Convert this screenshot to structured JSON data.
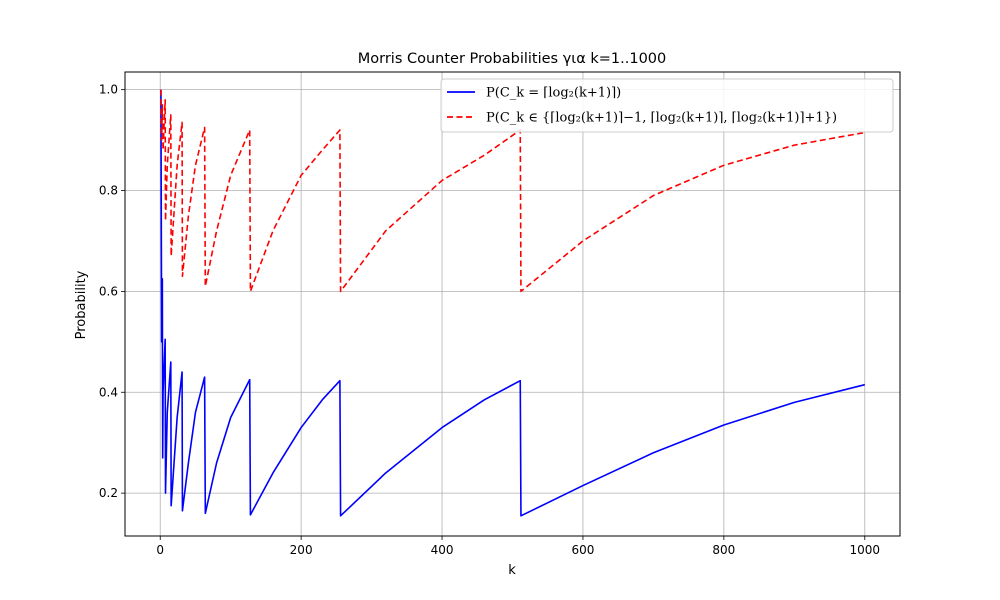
{
  "chart_data": {
    "type": "line",
    "title": "Morris Counter Probabilities για k=1..1000",
    "xlabel": "k",
    "ylabel": "Probability",
    "xlim": [
      -50,
      1050
    ],
    "ylim": [
      0.115,
      1.035
    ],
    "xticks": [
      0,
      200,
      400,
      600,
      800,
      1000
    ],
    "yticks": [
      0.2,
      0.4,
      0.6,
      0.8,
      1.0
    ],
    "xtick_labels": [
      "0",
      "200",
      "400",
      "600",
      "800",
      "1000"
    ],
    "ytick_labels": [
      "0.2",
      "0.4",
      "0.6",
      "0.8",
      "1.0"
    ],
    "grid": true,
    "legend_position": "top-right",
    "series": [
      {
        "name": "P(C_k = ⌈log₂(k+1)⌉)",
        "color": "#0000ff",
        "style": "solid",
        "points": [
          [
            1,
            1.0
          ],
          [
            2,
            0.5
          ],
          [
            3,
            0.625
          ],
          [
            3.5,
            0.27
          ],
          [
            4,
            0.4
          ],
          [
            7,
            0.505
          ],
          [
            7.5,
            0.2
          ],
          [
            10,
            0.36
          ],
          [
            15,
            0.46
          ],
          [
            15.5,
            0.175
          ],
          [
            24,
            0.35
          ],
          [
            31,
            0.44
          ],
          [
            31.5,
            0.165
          ],
          [
            40,
            0.26
          ],
          [
            50,
            0.36
          ],
          [
            63,
            0.43
          ],
          [
            64,
            0.16
          ],
          [
            80,
            0.26
          ],
          [
            100,
            0.35
          ],
          [
            127,
            0.425
          ],
          [
            128,
            0.157
          ],
          [
            160,
            0.24
          ],
          [
            200,
            0.33
          ],
          [
            230,
            0.385
          ],
          [
            255,
            0.423
          ],
          [
            256,
            0.155
          ],
          [
            320,
            0.24
          ],
          [
            400,
            0.33
          ],
          [
            460,
            0.385
          ],
          [
            511,
            0.423
          ],
          [
            512,
            0.155
          ],
          [
            600,
            0.215
          ],
          [
            700,
            0.28
          ],
          [
            800,
            0.335
          ],
          [
            900,
            0.38
          ],
          [
            1000,
            0.415
          ]
        ]
      },
      {
        "name": "P(C_k ∈ {⌈log₂(k+1)⌉−1, ⌈log₂(k+1)⌉, ⌈log₂(k+1)⌉+1})",
        "color": "#ff0000",
        "style": "dashed",
        "points": [
          [
            1,
            1.0
          ],
          [
            2,
            0.9
          ],
          [
            3,
            0.97
          ],
          [
            4,
            0.88
          ],
          [
            7,
            0.98
          ],
          [
            7.5,
            0.74
          ],
          [
            10,
            0.85
          ],
          [
            15,
            0.95
          ],
          [
            15.5,
            0.67
          ],
          [
            24,
            0.85
          ],
          [
            31,
            0.935
          ],
          [
            31.5,
            0.63
          ],
          [
            40,
            0.75
          ],
          [
            50,
            0.85
          ],
          [
            63,
            0.925
          ],
          [
            64,
            0.61
          ],
          [
            80,
            0.72
          ],
          [
            100,
            0.83
          ],
          [
            127,
            0.92
          ],
          [
            128,
            0.6
          ],
          [
            160,
            0.72
          ],
          [
            200,
            0.83
          ],
          [
            230,
            0.88
          ],
          [
            255,
            0.92
          ],
          [
            256,
            0.6
          ],
          [
            320,
            0.72
          ],
          [
            400,
            0.82
          ],
          [
            460,
            0.87
          ],
          [
            511,
            0.92
          ],
          [
            512,
            0.6
          ],
          [
            600,
            0.7
          ],
          [
            700,
            0.79
          ],
          [
            800,
            0.85
          ],
          [
            900,
            0.89
          ],
          [
            1000,
            0.915
          ]
        ]
      }
    ]
  }
}
